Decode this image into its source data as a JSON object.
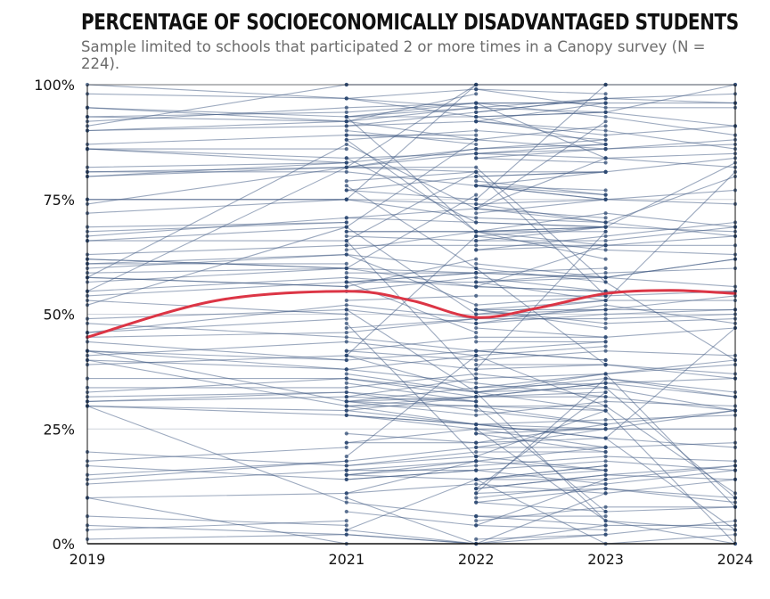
{
  "chart_data": {
    "type": "line",
    "title": "PERCENTAGE OF SOCIOECONOMICALLY DISADVANTAGED STUDENTS",
    "subtitle": "Sample limited to schools that participated 2 or more times in a Canopy survey (N = 224).",
    "x_ticks": [
      "2019",
      "2021",
      "2022",
      "2023",
      "2024"
    ],
    "y_ticks": [
      "0%",
      "25%",
      "50%",
      "75%",
      "100%"
    ],
    "xlim": [
      2019,
      2024
    ],
    "ylim": [
      0,
      100
    ],
    "grid": "horizontal",
    "trend": {
      "x": [
        2019,
        2020,
        2021,
        2021.5,
        2022,
        2022.5,
        2023,
        2023.5,
        2024
      ],
      "y": [
        45,
        53,
        55,
        53,
        49.3,
        51.5,
        54.5,
        55.2,
        54.5
      ]
    },
    "schools_seed": 7,
    "schools_count": 224
  },
  "colors": {
    "school_line": "#3b5680",
    "school_point": "#2c4872",
    "trend_line": "#dc3545",
    "grid": "#cfd4dc",
    "axis": "#111111"
  }
}
